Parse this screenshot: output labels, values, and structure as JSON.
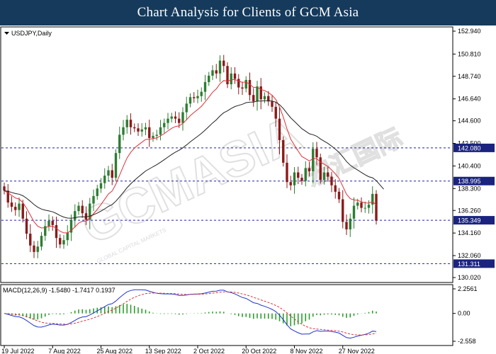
{
  "banner": {
    "title": "Chart Analysis for Clients of GCM Asia"
  },
  "chart_info": {
    "symbol_label": "USDJPY,Daily",
    "macd_label": "MACD(12,26,9) -1.5480 -1.7417 0.1937"
  },
  "watermark": {
    "brand": "GCMASIA",
    "cn": "宏汇国际",
    "sub": "GLOBAL CAPITAL MARKETS"
  },
  "colors": {
    "bull": "#2e7d32",
    "bear": "#8b1a1a",
    "ma_fast": "#e0303a",
    "ma_slow": "#222222",
    "level_line": "#1f1fb4",
    "level_box": "#1a237e",
    "macd_main": "#2233cc",
    "macd_signal": "#e0303a",
    "macd_hist": "#2e9d2e"
  },
  "chart_data": {
    "type": "candlestick",
    "title": "",
    "symbol": "USDJPY",
    "timeframe": "Daily",
    "y_axis_ticks": [
      "152.940",
      "150.810",
      "148.740",
      "146.640",
      "144.600",
      "142.500",
      "140.400",
      "138.300",
      "136.260",
      "134.160",
      "132.060",
      "130.020"
    ],
    "ylim": [
      130.02,
      152.94
    ],
    "x_axis_ticks": [
      "19 Jul 2022",
      "7 Aug 2022",
      "25 Aug 2022",
      "13 Sep 2022",
      "2 Oct 2022",
      "20 Oct 2022",
      "8 Nov 2022",
      "27 Nov 2022"
    ],
    "x_tick_bar_index": [
      0,
      13,
      26,
      39,
      52,
      65,
      78,
      91
    ],
    "levels": [
      "142.080",
      "138.995",
      "135.349",
      "131.311"
    ],
    "macd_axis_ticks": [
      "2.2561",
      "0.00",
      "-2.558"
    ],
    "macd_ylim": [
      -2.558,
      2.2561
    ],
    "closes": [
      138.1,
      137.0,
      136.6,
      136.3,
      136.9,
      135.5,
      134.1,
      133.0,
      132.4,
      132.9,
      133.9,
      134.8,
      135.3,
      134.9,
      133.7,
      133.1,
      133.5,
      134.2,
      135.4,
      136.2,
      136.7,
      136.0,
      135.4,
      136.9,
      137.6,
      138.3,
      138.8,
      139.5,
      140.0,
      139.3,
      141.6,
      143.3,
      144.0,
      144.7,
      144.0,
      143.9,
      143.6,
      143.8,
      144.0,
      143.0,
      143.2,
      143.3,
      144.0,
      144.4,
      144.8,
      145.0,
      144.8,
      144.4,
      145.4,
      146.2,
      146.8,
      146.7,
      146.9,
      147.3,
      148.2,
      148.8,
      149.3,
      149.0,
      150.2,
      149.7,
      148.0,
      149.0,
      148.5,
      147.7,
      147.6,
      148.4,
      147.0,
      146.4,
      147.8,
      146.6,
      146.9,
      146.4,
      145.9,
      144.8,
      142.8,
      140.7,
      138.9,
      138.6,
      139.8,
      139.3,
      139.0,
      140.2,
      139.9,
      142.0,
      141.2,
      139.1,
      139.8,
      139.4,
      138.6,
      138.0,
      137.3,
      135.2,
      134.5,
      135.5,
      136.7,
      137.0,
      136.5,
      136.5,
      136.8,
      137.8,
      135.3
    ]
  }
}
